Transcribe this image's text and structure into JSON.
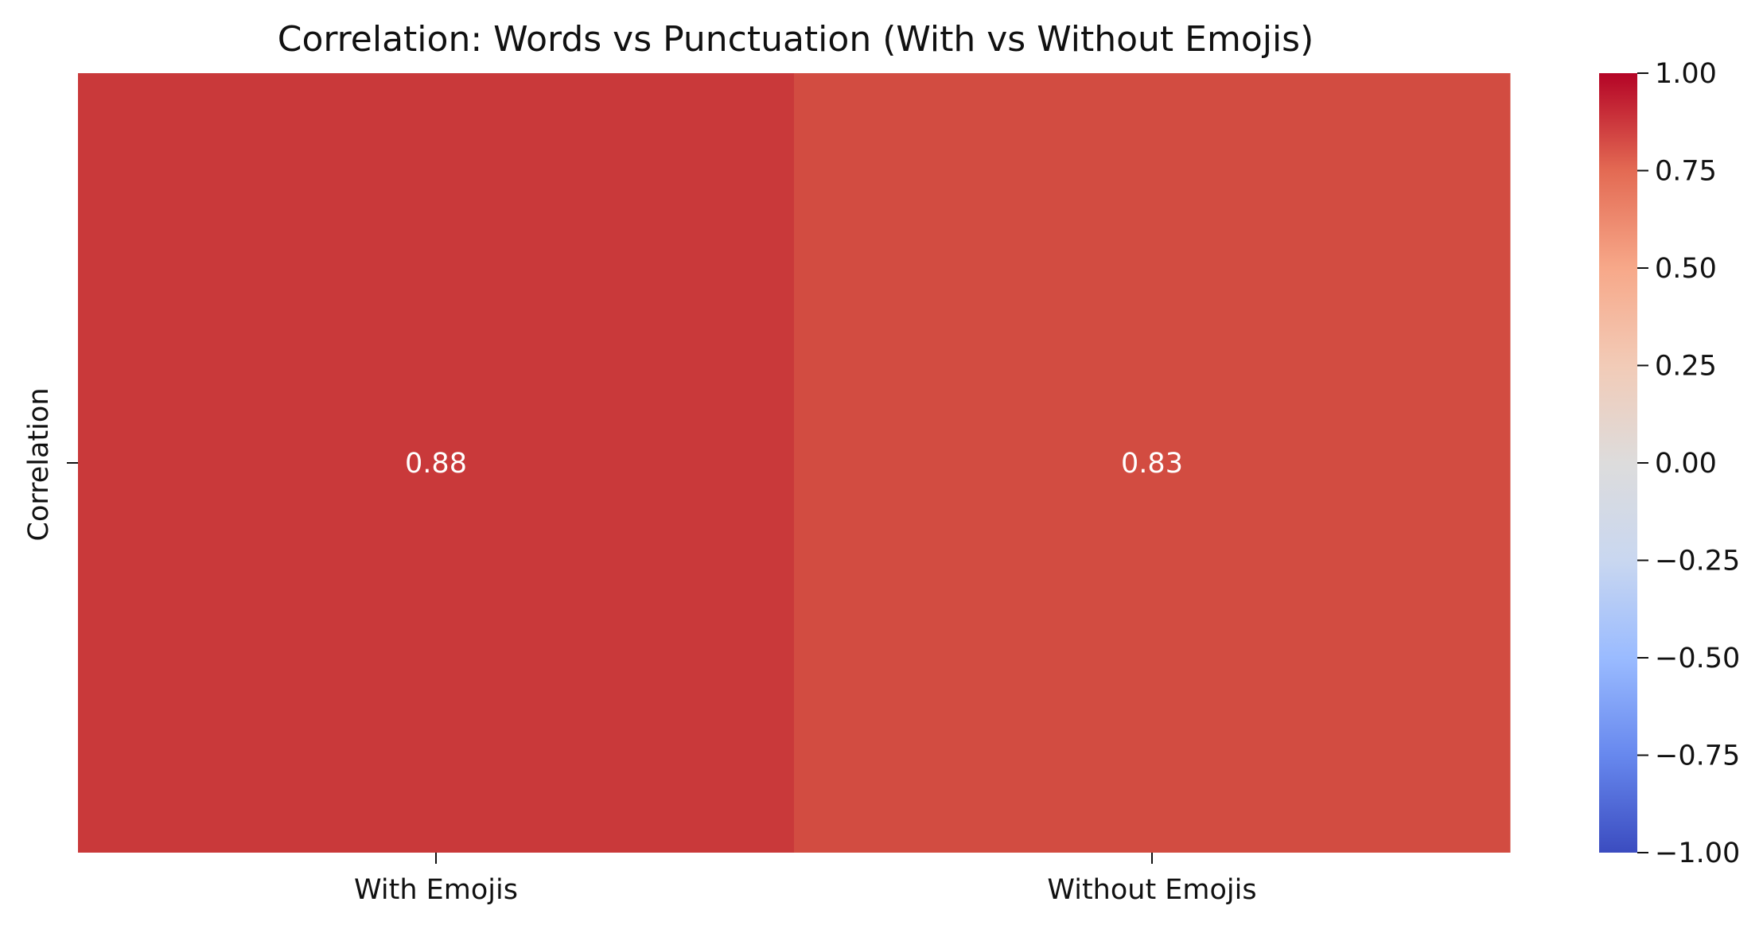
{
  "chart_data": {
    "type": "heatmap",
    "title": "Correlation: Words vs Punctuation (With vs Without Emojis)",
    "x_categories": [
      "With Emojis",
      "Without Emojis"
    ],
    "y_categories": [
      "Correlation"
    ],
    "ylabel": "Correlation",
    "values": [
      [
        0.88,
        0.83
      ]
    ],
    "value_labels": [
      [
        "0.88",
        "0.83"
      ]
    ],
    "colormap": "coolwarm",
    "vmin": -1.0,
    "vmax": 1.0,
    "colorbar": {
      "ticks": [
        1.0,
        0.75,
        0.5,
        0.25,
        0.0,
        -0.25,
        -0.5,
        -0.75,
        -1.0
      ],
      "tick_labels": [
        "1.00",
        "0.75",
        "0.50",
        "0.25",
        "0.00",
        "−0.25",
        "−0.50",
        "−0.75",
        "−1.00"
      ],
      "position": "right"
    },
    "cell_colors": [
      [
        "#c9393a",
        "#d24c41"
      ]
    ],
    "colorbar_stops": [
      "#3b4cc0",
      "#6788ee",
      "#9abbff",
      "#c9d7f0",
      "#dddcdc",
      "#f2cbb7",
      "#f7a889",
      "#e36a53",
      "#b40426"
    ]
  }
}
